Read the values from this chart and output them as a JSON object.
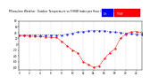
{
  "title": "Milwaukee Weather  Outdoor Temperature vs THSW Index per Hour (24 Hours)",
  "hours": [
    0,
    1,
    2,
    3,
    4,
    5,
    6,
    7,
    8,
    9,
    10,
    11,
    12,
    13,
    14,
    15,
    16,
    17,
    18,
    19,
    20,
    21,
    22,
    23
  ],
  "temp": [
    32,
    32,
    32,
    32,
    32,
    32,
    32,
    32,
    32,
    35,
    38,
    42,
    44,
    46,
    47,
    47,
    46,
    44,
    42,
    40,
    38,
    36,
    34,
    34
  ],
  "thsw": [
    30,
    29,
    28,
    27,
    26,
    25,
    24,
    23,
    10,
    -5,
    -20,
    -30,
    -60,
    -70,
    -80,
    -75,
    -50,
    -30,
    -15,
    20,
    35,
    42,
    44,
    40
  ],
  "temp_color": "#0000ff",
  "thsw_color": "#ff0000",
  "bg_color": "#ffffff",
  "grid_color": "#b0b0b0",
  "ylim": [
    -90,
    80
  ],
  "xlim": [
    0,
    23
  ],
  "yticks": [
    -80,
    -60,
    -40,
    -20,
    0,
    20,
    40,
    60,
    80
  ],
  "xticks": [
    0,
    2,
    4,
    6,
    8,
    10,
    12,
    14,
    16,
    18,
    20,
    22
  ]
}
